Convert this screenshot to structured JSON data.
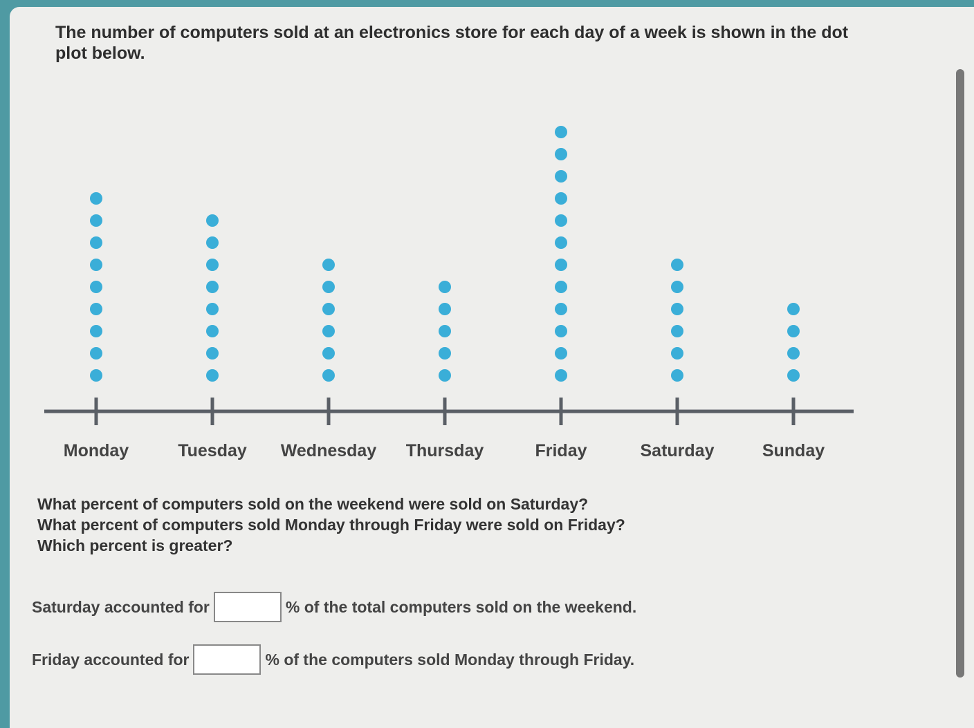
{
  "prompt": "The number of computers sold at an electronics store for each day of a week is shown in the dot plot below.",
  "chart_data": {
    "type": "dot",
    "color": "#3aaed8",
    "categories": [
      "Monday",
      "Tuesday",
      "Wednesday",
      "Thursday",
      "Friday",
      "Saturday",
      "Sunday"
    ],
    "values": [
      9,
      8,
      6,
      5,
      12,
      6,
      4
    ]
  },
  "questions": [
    "What percent of computers sold on the weekend were sold on Saturday?",
    "What percent of computers sold Monday through Friday were sold on Friday?",
    "Which percent is greater?"
  ],
  "answers": [
    {
      "before": "Saturday accounted for",
      "after": "% of the total computers sold on the weekend."
    },
    {
      "before": "Friday accounted for",
      "after": "% of the computers sold Monday through Friday."
    }
  ]
}
